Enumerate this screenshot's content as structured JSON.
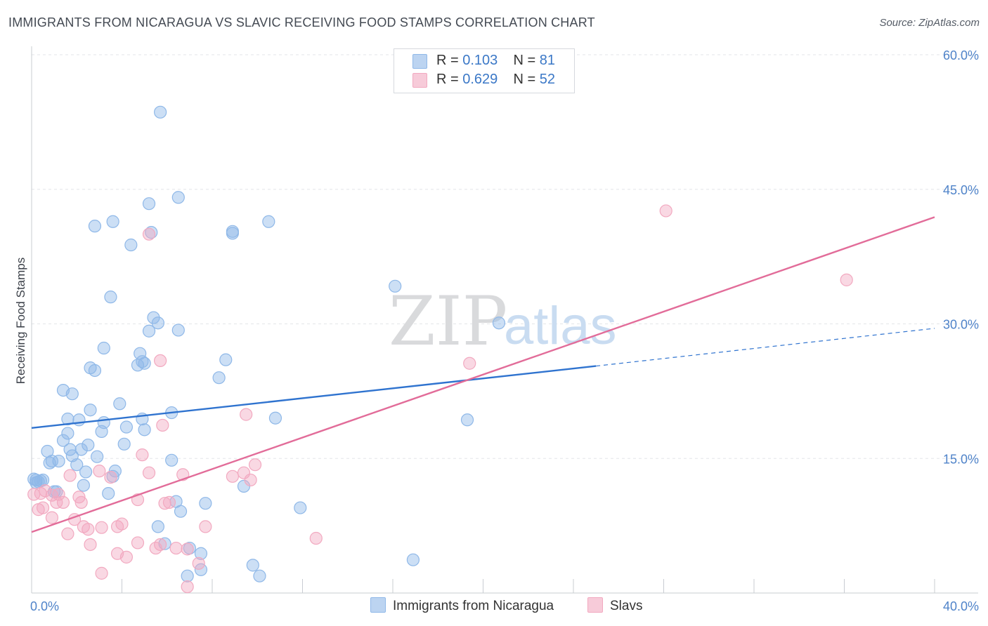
{
  "title": "IMMIGRANTS FROM NICARAGUA VS SLAVIC RECEIVING FOOD STAMPS CORRELATION CHART",
  "source": "Source: ZipAtlas.com",
  "watermark": {
    "zip": "ZIP",
    "atlas": "atlas"
  },
  "legend": {
    "r_label": "R =",
    "n_label": "N =",
    "series": [
      {
        "name": "Immigrants from Nicaragua",
        "r": "0.103",
        "n": "81",
        "color": "#8fb8e8"
      },
      {
        "name": "Slavs",
        "r": "0.629",
        "n": "52",
        "color": "#f2a9c0"
      }
    ]
  },
  "chart_data": {
    "type": "scatter",
    "title": "IMMIGRANTS FROM NICARAGUA VS SLAVIC RECEIVING FOOD STAMPS CORRELATION CHART",
    "xlabel": "",
    "ylabel": "Receiving Food Stamps",
    "xlim": [
      0,
      40
    ],
    "ylim": [
      0,
      60
    ],
    "x_tick_labels": [
      {
        "value": 0,
        "label": "0.0%"
      },
      {
        "value": 40,
        "label": "40.0%"
      }
    ],
    "y_tick_labels": [
      {
        "value": 15,
        "label": "15.0%"
      },
      {
        "value": 30,
        "label": "30.0%"
      },
      {
        "value": 45,
        "label": "45.0%"
      },
      {
        "value": 60,
        "label": "60.0%"
      }
    ],
    "series": [
      {
        "name": "Immigrants from Nicaragua",
        "color": "#8fb8e8",
        "line_color": "#2f73cf",
        "trend": {
          "x0": 0,
          "y0": 18.4,
          "x1": 25,
          "y1": 25.3,
          "dashed_to_x": 40,
          "dashed_to_y": 29.5
        },
        "points": [
          [
            5.7,
            53.6
          ],
          [
            6.5,
            44.1
          ],
          [
            5.2,
            43.4
          ],
          [
            3.6,
            41.4
          ],
          [
            2.8,
            40.9
          ],
          [
            5.3,
            40.2
          ],
          [
            8.9,
            40.3
          ],
          [
            8.9,
            40.1
          ],
          [
            10.5,
            41.4
          ],
          [
            4.4,
            38.8
          ],
          [
            16.1,
            34.2
          ],
          [
            3.5,
            33.0
          ],
          [
            5.4,
            30.7
          ],
          [
            5.6,
            30.1
          ],
          [
            5.2,
            29.2
          ],
          [
            6.5,
            29.3
          ],
          [
            20.7,
            30.1
          ],
          [
            3.2,
            27.3
          ],
          [
            4.8,
            26.7
          ],
          [
            4.9,
            25.8
          ],
          [
            4.7,
            25.4
          ],
          [
            2.6,
            25.1
          ],
          [
            2.8,
            24.8
          ],
          [
            8.6,
            26.0
          ],
          [
            8.3,
            24.0
          ],
          [
            1.4,
            22.6
          ],
          [
            1.8,
            22.2
          ],
          [
            3.9,
            21.1
          ],
          [
            2.6,
            20.4
          ],
          [
            6.2,
            20.1
          ],
          [
            1.6,
            19.4
          ],
          [
            2.1,
            19.3
          ],
          [
            3.2,
            19.0
          ],
          [
            4.9,
            19.4
          ],
          [
            10.8,
            19.5
          ],
          [
            19.3,
            19.3
          ],
          [
            4.2,
            18.5
          ],
          [
            5.0,
            18.2
          ],
          [
            3.1,
            18.0
          ],
          [
            1.6,
            17.8
          ],
          [
            1.4,
            17.0
          ],
          [
            4.1,
            16.6
          ],
          [
            2.5,
            16.5
          ],
          [
            2.2,
            16.0
          ],
          [
            1.7,
            16.0
          ],
          [
            0.7,
            15.8
          ],
          [
            1.8,
            15.3
          ],
          [
            2.9,
            15.2
          ],
          [
            0.9,
            14.7
          ],
          [
            1.2,
            14.7
          ],
          [
            0.8,
            14.5
          ],
          [
            6.2,
            14.8
          ],
          [
            2.0,
            14.3
          ],
          [
            3.7,
            13.6
          ],
          [
            2.4,
            13.5
          ],
          [
            0.2,
            12.6
          ],
          [
            0.4,
            12.5
          ],
          [
            0.3,
            12.4
          ],
          [
            3.6,
            13.0
          ],
          [
            2.3,
            12.0
          ],
          [
            9.4,
            11.9
          ],
          [
            1.0,
            11.3
          ],
          [
            1.1,
            11.3
          ],
          [
            3.4,
            11.1
          ],
          [
            6.4,
            10.2
          ],
          [
            7.7,
            10.0
          ],
          [
            6.6,
            9.1
          ],
          [
            11.9,
            9.5
          ],
          [
            5.6,
            7.4
          ],
          [
            5.9,
            5.5
          ],
          [
            7.0,
            5.0
          ],
          [
            7.5,
            4.4
          ],
          [
            9.8,
            3.1
          ],
          [
            16.9,
            3.7
          ],
          [
            7.5,
            2.6
          ],
          [
            10.1,
            1.9
          ],
          [
            6.9,
            1.9
          ],
          [
            0.1,
            12.7
          ],
          [
            0.2,
            12.3
          ],
          [
            0.5,
            12.6
          ],
          [
            5.0,
            25.6
          ]
        ]
      },
      {
        "name": "Slavs",
        "color": "#f2a9c0",
        "line_color": "#e26c99",
        "trend": {
          "x0": 0,
          "y0": 6.8,
          "x1": 40,
          "y1": 41.9
        },
        "points": [
          [
            28.1,
            42.6
          ],
          [
            36.1,
            34.9
          ],
          [
            5.2,
            40.0
          ],
          [
            5.7,
            25.9
          ],
          [
            19.4,
            25.6
          ],
          [
            9.5,
            19.9
          ],
          [
            5.8,
            18.7
          ],
          [
            4.9,
            15.4
          ],
          [
            9.9,
            14.3
          ],
          [
            3.0,
            13.6
          ],
          [
            5.2,
            13.4
          ],
          [
            6.7,
            13.2
          ],
          [
            9.4,
            13.4
          ],
          [
            8.9,
            13.0
          ],
          [
            1.7,
            13.1
          ],
          [
            3.5,
            12.9
          ],
          [
            9.7,
            12.6
          ],
          [
            0.4,
            11.1
          ],
          [
            0.6,
            11.4
          ],
          [
            1.2,
            11.0
          ],
          [
            0.9,
            10.9
          ],
          [
            2.1,
            10.7
          ],
          [
            4.7,
            10.4
          ],
          [
            1.1,
            10.1
          ],
          [
            1.4,
            10.1
          ],
          [
            2.2,
            10.1
          ],
          [
            5.9,
            10.0
          ],
          [
            6.1,
            10.1
          ],
          [
            0.3,
            9.3
          ],
          [
            0.5,
            9.5
          ],
          [
            0.9,
            8.4
          ],
          [
            1.9,
            8.2
          ],
          [
            4.0,
            7.7
          ],
          [
            7.7,
            7.4
          ],
          [
            2.3,
            7.4
          ],
          [
            3.1,
            7.3
          ],
          [
            3.8,
            7.4
          ],
          [
            2.5,
            7.1
          ],
          [
            1.6,
            6.6
          ],
          [
            12.6,
            6.1
          ],
          [
            4.7,
            5.6
          ],
          [
            5.7,
            5.4
          ],
          [
            2.6,
            5.4
          ],
          [
            5.5,
            5.0
          ],
          [
            6.4,
            5.0
          ],
          [
            6.9,
            4.9
          ],
          [
            3.8,
            4.4
          ],
          [
            4.2,
            4.0
          ],
          [
            7.4,
            3.3
          ],
          [
            3.1,
            2.2
          ],
          [
            6.9,
            0.7
          ],
          [
            0.1,
            11.0
          ]
        ]
      }
    ]
  }
}
